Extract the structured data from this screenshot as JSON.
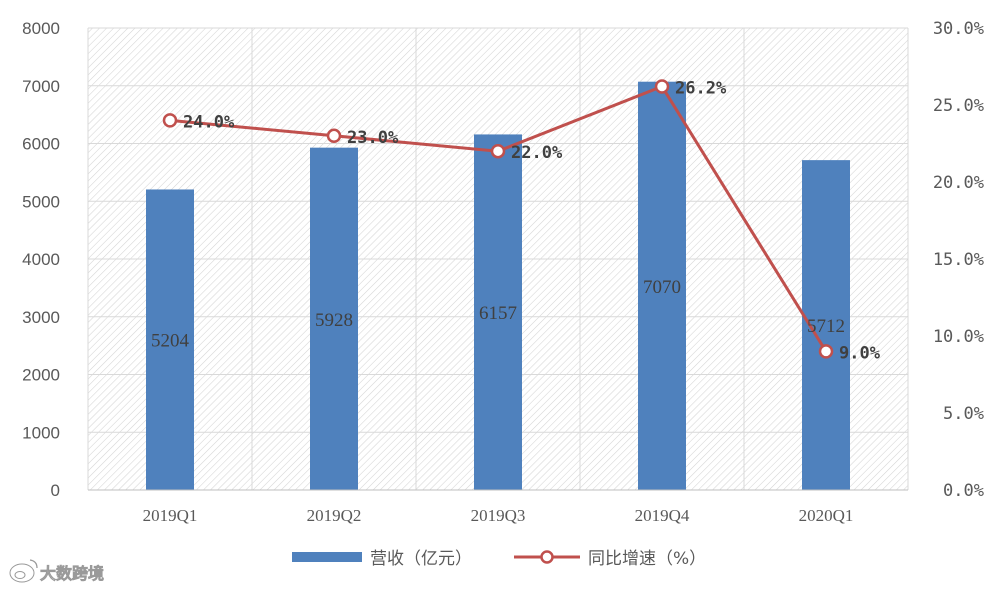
{
  "chart_data": {
    "type": "bar+line",
    "categories": [
      "2019Q1",
      "2019Q2",
      "2019Q3",
      "2019Q4",
      "2020Q1"
    ],
    "series": [
      {
        "name": "营收（亿元）",
        "type": "bar",
        "axis": "left",
        "values": [
          5204,
          5928,
          6157,
          7070,
          5712
        ],
        "labels": [
          "5204",
          "5928",
          "6157",
          "7070",
          "5712"
        ]
      },
      {
        "name": "同比增速（%）",
        "type": "line",
        "axis": "right",
        "values": [
          24.0,
          23.0,
          22.0,
          26.2,
          9.0
        ],
        "labels": [
          "24.0%",
          "23.0%",
          "22.0%",
          "26.2%",
          "9.0%"
        ]
      }
    ],
    "ylim_left": [
      0,
      8000
    ],
    "yticks_left": [
      "0",
      "1000",
      "2000",
      "3000",
      "4000",
      "5000",
      "6000",
      "7000",
      "8000"
    ],
    "ylim_right": [
      0,
      30
    ],
    "yticks_right": [
      "0.0%",
      "5.0%",
      "10.0%",
      "15.0%",
      "20.0%",
      "25.0%",
      "30.0%"
    ],
    "grid": true,
    "legend_position": "bottom",
    "colors": {
      "bar": "#4f81bd",
      "line": "#c0504d",
      "marker_fill": "#ffffff",
      "grid": "#d9d9d9",
      "plot_hatch": "#d4d4d4"
    }
  },
  "watermark": {
    "text": "大数跨境",
    "icon": "weibo-logo-icon"
  }
}
